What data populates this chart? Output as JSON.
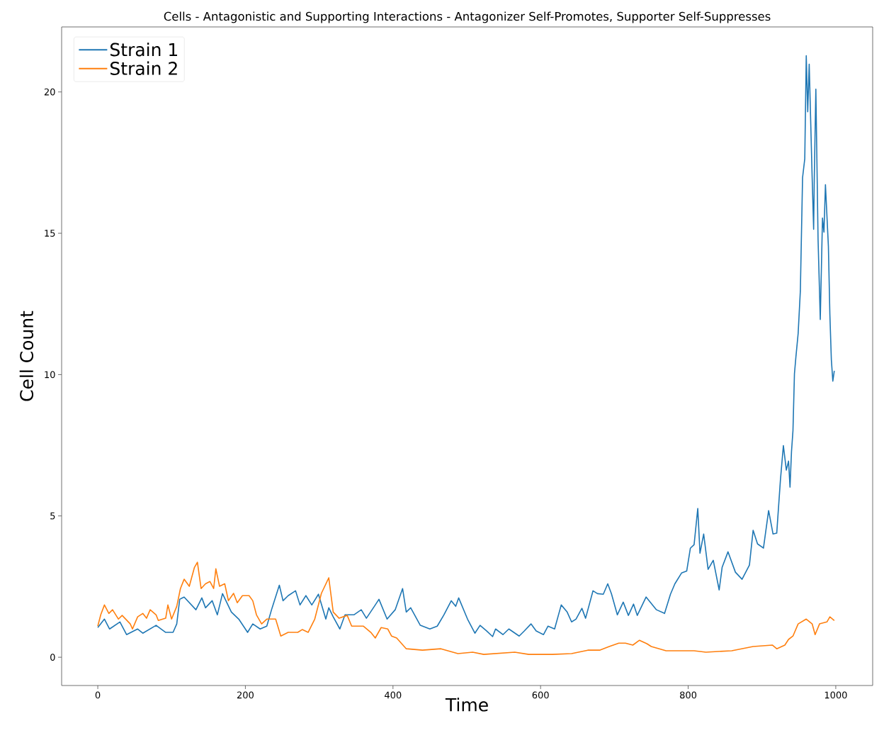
{
  "chart_data": {
    "type": "line",
    "title": "Cells - Antagonistic and Supporting Interactions - Antagonizer Self-Promotes, Supporter Self-Suppresses",
    "xlabel": "Time",
    "ylabel": "Cell Count",
    "xlim": [
      -49,
      1050
    ],
    "ylim": [
      -1,
      22.3
    ],
    "xticks": [
      0,
      200,
      400,
      600,
      800,
      1000
    ],
    "yticks": [
      0,
      5,
      10,
      15,
      20
    ],
    "grid": false,
    "legend": "top left",
    "line_style": "solid",
    "marker": "none",
    "series": [
      {
        "name": "Strain 1",
        "color": "#1f77b4",
        "x": [
          0,
          9,
          16,
          30,
          39,
          54,
          61,
          79,
          92,
          102,
          107,
          111,
          117,
          133,
          141,
          146,
          155,
          162,
          169,
          181,
          191,
          203,
          210,
          220,
          229,
          236,
          246,
          251,
          258,
          268,
          274,
          282,
          290,
          299,
          309,
          313,
          319,
          328,
          335,
          347,
          357,
          364,
          376,
          381,
          392,
          403,
          413,
          418,
          424,
          437,
          450,
          460,
          469,
          479,
          485,
          489,
          501,
          511,
          518,
          527,
          535,
          539,
          549,
          557,
          571,
          578,
          587,
          594,
          604,
          610,
          619,
          628,
          636,
          642,
          648,
          656,
          661,
          671,
          677,
          685,
          691,
          696,
          704,
          712,
          719,
          726,
          731,
          743,
          757,
          768,
          776,
          782,
          791,
          798,
          803,
          808,
          813,
          816,
          821,
          827,
          834,
          842,
          846,
          854,
          864,
          873,
          883,
          888,
          894,
          902,
          909,
          915,
          920,
          925,
          929,
          933,
          936,
          938,
          940,
          942,
          944,
          946,
          949,
          952,
          955,
          958,
          960,
          962,
          964,
          968,
          970,
          971,
          973,
          976,
          979,
          982,
          984,
          986,
          990,
          992,
          994,
          996,
          998
        ],
        "values": [
          1.05,
          1.35,
          1.0,
          1.25,
          0.8,
          1.0,
          0.85,
          1.13,
          0.88,
          0.88,
          1.18,
          2.05,
          2.13,
          1.68,
          2.1,
          1.75,
          2.0,
          1.5,
          2.25,
          1.6,
          1.35,
          0.88,
          1.18,
          1.0,
          1.1,
          1.73,
          2.55,
          2.0,
          2.18,
          2.35,
          1.85,
          2.18,
          1.85,
          2.23,
          1.35,
          1.75,
          1.43,
          1.0,
          1.5,
          1.5,
          1.68,
          1.38,
          1.85,
          2.05,
          1.35,
          1.68,
          2.43,
          1.6,
          1.75,
          1.13,
          1.0,
          1.1,
          1.5,
          2.0,
          1.8,
          2.1,
          1.35,
          0.85,
          1.13,
          0.93,
          0.73,
          1.0,
          0.8,
          1.0,
          0.75,
          0.93,
          1.18,
          0.93,
          0.8,
          1.1,
          1.0,
          1.85,
          1.6,
          1.25,
          1.35,
          1.73,
          1.38,
          2.35,
          2.25,
          2.23,
          2.6,
          2.25,
          1.5,
          1.95,
          1.48,
          1.88,
          1.48,
          2.13,
          1.68,
          1.55,
          2.23,
          2.6,
          2.98,
          3.05,
          3.86,
          3.98,
          5.26,
          3.68,
          4.36,
          3.11,
          3.43,
          2.38,
          3.18,
          3.73,
          3.01,
          2.76,
          3.26,
          4.49,
          4.01,
          3.86,
          5.19,
          4.36,
          4.39,
          6.27,
          7.49,
          6.62,
          6.94,
          6.02,
          7.27,
          8.02,
          10.03,
          10.63,
          11.45,
          12.96,
          16.97,
          17.64,
          21.28,
          19.3,
          20.98,
          16.97,
          15.14,
          17.14,
          20.1,
          14.79,
          11.95,
          15.54,
          15.04,
          16.72,
          14.54,
          12.13,
          10.53,
          9.77,
          10.13
        ]
      },
      {
        "name": "Strain 2",
        "color": "#ff7f0e",
        "x": [
          0,
          4,
          9,
          15,
          20,
          28,
          33,
          44,
          47,
          54,
          61,
          66,
          71,
          79,
          82,
          92,
          95,
          100,
          107,
          112,
          117,
          124,
          131,
          135,
          140,
          146,
          152,
          157,
          160,
          165,
          172,
          177,
          184,
          189,
          196,
          205,
          210,
          215,
          222,
          229,
          241,
          248,
          258,
          271,
          277,
          285,
          294,
          303,
          313,
          319,
          327,
          338,
          344,
          360,
          370,
          376,
          384,
          393,
          398,
          405,
          418,
          440,
          465,
          488,
          508,
          523,
          565,
          584,
          616,
          642,
          664,
          680,
          693,
          706,
          715,
          725,
          734,
          744,
          750,
          770,
          808,
          824,
          859,
          888,
          914,
          920,
          931,
          936,
          942,
          949,
          960,
          968,
          972,
          978,
          988,
          992,
          998
        ],
        "values": [
          1.1,
          1.5,
          1.85,
          1.55,
          1.68,
          1.35,
          1.48,
          1.18,
          1.0,
          1.43,
          1.55,
          1.38,
          1.68,
          1.5,
          1.3,
          1.38,
          1.85,
          1.35,
          1.8,
          2.43,
          2.76,
          2.51,
          3.18,
          3.36,
          2.43,
          2.6,
          2.68,
          2.43,
          3.13,
          2.51,
          2.6,
          2.0,
          2.26,
          1.93,
          2.18,
          2.18,
          2.0,
          1.5,
          1.18,
          1.35,
          1.35,
          0.75,
          0.88,
          0.88,
          0.98,
          0.88,
          1.35,
          2.26,
          2.81,
          1.6,
          1.38,
          1.48,
          1.1,
          1.1,
          0.88,
          0.68,
          1.05,
          1.0,
          0.75,
          0.68,
          0.3,
          0.25,
          0.3,
          0.13,
          0.18,
          0.1,
          0.18,
          0.1,
          0.1,
          0.13,
          0.25,
          0.25,
          0.38,
          0.5,
          0.5,
          0.43,
          0.6,
          0.48,
          0.38,
          0.23,
          0.23,
          0.18,
          0.23,
          0.38,
          0.43,
          0.3,
          0.43,
          0.63,
          0.75,
          1.18,
          1.35,
          1.18,
          0.8,
          1.18,
          1.25,
          1.43,
          1.3
        ]
      }
    ]
  }
}
